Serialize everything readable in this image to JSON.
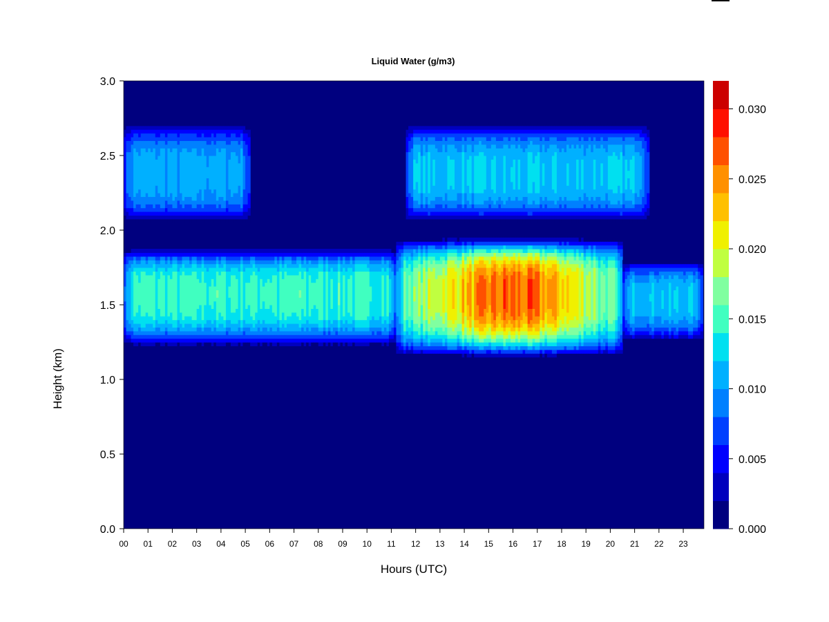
{
  "chart_data": {
    "type": "heatmap",
    "title": "Liquid Water (g/m3)",
    "xlabel": "Hours (UTC)",
    "ylabel": "Height (km)",
    "x_ticks": [
      "00",
      "01",
      "02",
      "03",
      "04",
      "05",
      "06",
      "07",
      "08",
      "09",
      "10",
      "11",
      "12",
      "13",
      "14",
      "15",
      "16",
      "17",
      "18",
      "19",
      "20",
      "21",
      "22",
      "23"
    ],
    "xlim": [
      0,
      23.85
    ],
    "ylim": [
      0,
      3.0
    ],
    "y_ticks": [
      "0.0",
      "0.5",
      "1.0",
      "1.5",
      "2.0",
      "2.5",
      "3.0"
    ],
    "colorbar": {
      "range": [
        0,
        0.032
      ],
      "ticks": [
        "0.000",
        "0.005",
        "0.010",
        "0.015",
        "0.020",
        "0.025",
        "0.030"
      ],
      "levels": [
        0,
        0.002,
        0.004,
        0.006,
        0.008,
        0.01,
        0.012,
        0.014,
        0.016,
        0.018,
        0.02,
        0.022,
        0.024,
        0.026,
        0.028,
        0.03,
        0.032
      ],
      "colors": [
        "#00007F",
        "#0000BE",
        "#0000FE",
        "#0040FF",
        "#0080FF",
        "#00B0FF",
        "#00E0F0",
        "#40FFC0",
        "#80FFA0",
        "#C0FF40",
        "#F0F000",
        "#FFC000",
        "#FF9000",
        "#FF5000",
        "#FF1000",
        "#CC0000",
        "#800000"
      ]
    },
    "layers": [
      {
        "name": "lower cloud",
        "x_range": [
          0,
          11.2
        ],
        "base_km": 1.22,
        "top_km": 1.88,
        "center_km": 1.58,
        "peak_value": 0.015
      },
      {
        "name": "lower cloud",
        "x_range": [
          11.2,
          20.5
        ],
        "base_km": 1.15,
        "top_km": 1.95,
        "center_km": 1.58,
        "peak_value": 0.027
      },
      {
        "name": "lower cloud",
        "x_range": [
          20.5,
          23.85
        ],
        "base_km": 1.25,
        "top_km": 1.8,
        "center_km": 1.55,
        "peak_value": 0.012
      },
      {
        "name": "upper cloud",
        "x_range": [
          0,
          5.2
        ],
        "base_km": 2.05,
        "top_km": 2.72,
        "center_km": 2.38,
        "peak_value": 0.011
      },
      {
        "name": "upper cloud",
        "x_range": [
          11.6,
          21.6
        ],
        "base_km": 2.05,
        "top_km": 2.72,
        "center_km": 2.38,
        "peak_value": 0.012
      }
    ]
  }
}
